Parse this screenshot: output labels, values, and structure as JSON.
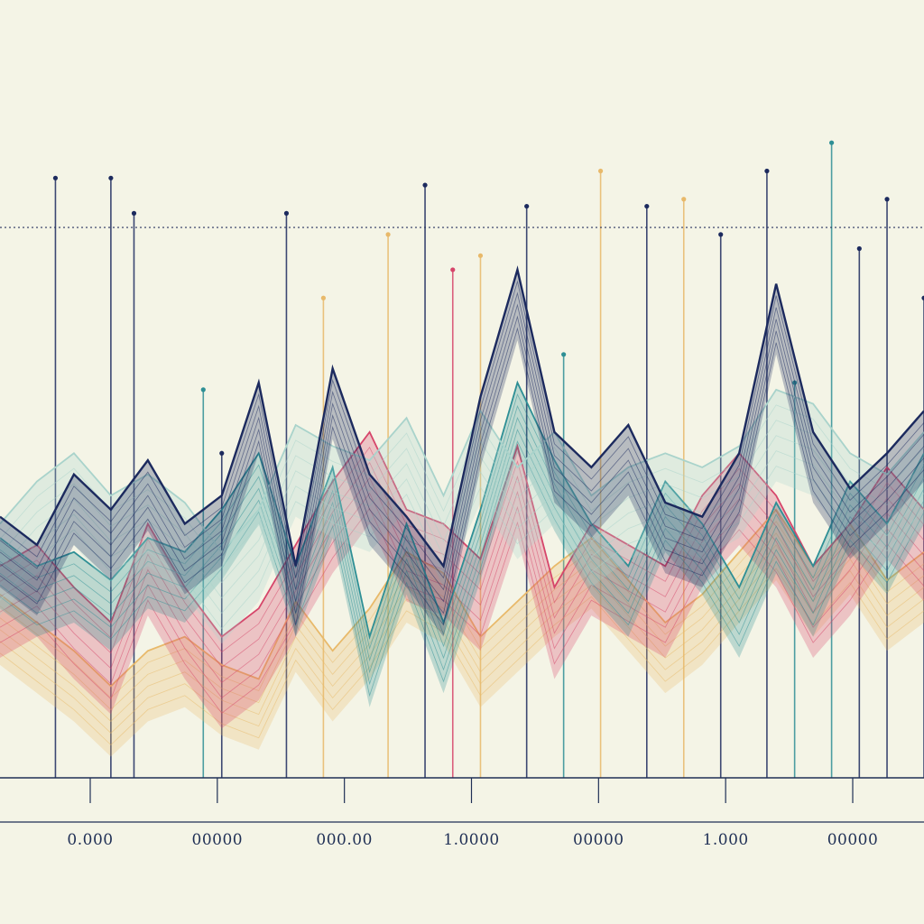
{
  "chart_data": {
    "type": "area",
    "title": "",
    "xlabel": "",
    "ylabel": "",
    "x_tick_labels": [
      "0.000",
      "00000",
      "000.00",
      "1.0000",
      "00000",
      "1.000",
      "00000"
    ],
    "grid": false,
    "reference_line": {
      "style": "dotted",
      "y": 0.78
    },
    "ylim": [
      0,
      1
    ],
    "x": [
      0,
      0.4,
      0.8,
      1.2,
      1.6,
      2.0,
      2.4,
      2.8,
      3.2,
      3.6,
      4.0,
      4.4,
      4.8,
      5.2,
      5.6,
      6.0,
      6.4,
      6.8,
      7.2,
      7.6,
      8.0,
      8.4,
      8.8,
      9.2,
      9.6,
      10.0
    ],
    "series": [
      {
        "color": "#e8b96a",
        "values": [
          0.26,
          0.22,
          0.18,
          0.13,
          0.18,
          0.2,
          0.16,
          0.14,
          0.25,
          0.18,
          0.24,
          0.32,
          0.29,
          0.2,
          0.25,
          0.3,
          0.34,
          0.28,
          0.22,
          0.26,
          0.32,
          0.38,
          0.3,
          0.36,
          0.28,
          0.32
        ]
      },
      {
        "color": "#d6456a",
        "values": [
          0.3,
          0.33,
          0.27,
          0.22,
          0.36,
          0.27,
          0.2,
          0.24,
          0.33,
          0.42,
          0.49,
          0.38,
          0.36,
          0.31,
          0.47,
          0.27,
          0.36,
          0.33,
          0.3,
          0.4,
          0.46,
          0.4,
          0.3,
          0.36,
          0.44,
          0.38
        ]
      },
      {
        "color": "#2e8f95",
        "values": [
          0.34,
          0.3,
          0.32,
          0.28,
          0.34,
          0.32,
          0.38,
          0.46,
          0.3,
          0.44,
          0.2,
          0.36,
          0.22,
          0.38,
          0.56,
          0.45,
          0.36,
          0.3,
          0.42,
          0.36,
          0.27,
          0.39,
          0.3,
          0.42,
          0.36,
          0.46
        ]
      },
      {
        "color": "#a9d3cb",
        "values": [
          0.36,
          0.42,
          0.46,
          0.4,
          0.43,
          0.39,
          0.32,
          0.38,
          0.5,
          0.47,
          0.45,
          0.51,
          0.4,
          0.52,
          0.44,
          0.49,
          0.4,
          0.44,
          0.46,
          0.44,
          0.47,
          0.55,
          0.53,
          0.46,
          0.43,
          0.49
        ]
      },
      {
        "color": "#1c2a5e",
        "values": [
          0.37,
          0.33,
          0.43,
          0.38,
          0.45,
          0.36,
          0.4,
          0.56,
          0.3,
          0.58,
          0.43,
          0.37,
          0.3,
          0.54,
          0.72,
          0.49,
          0.44,
          0.5,
          0.39,
          0.37,
          0.46,
          0.7,
          0.49,
          0.41,
          0.46,
          0.52
        ]
      }
    ],
    "spikes": [
      {
        "x": 0.6,
        "height": 0.85,
        "color": "#1c2a5e"
      },
      {
        "x": 1.2,
        "height": 0.85,
        "color": "#1c2a5e"
      },
      {
        "x": 1.45,
        "height": 0.8,
        "color": "#1c2a5e"
      },
      {
        "x": 2.2,
        "height": 0.55,
        "color": "#2e8f95"
      },
      {
        "x": 2.4,
        "height": 0.46,
        "color": "#1c2a5e"
      },
      {
        "x": 3.5,
        "height": 0.68,
        "color": "#e8b96a"
      },
      {
        "x": 3.1,
        "height": 0.8,
        "color": "#1c2a5e"
      },
      {
        "x": 4.2,
        "height": 0.77,
        "color": "#e8b96a"
      },
      {
        "x": 4.6,
        "height": 0.84,
        "color": "#1c2a5e"
      },
      {
        "x": 4.9,
        "height": 0.72,
        "color": "#d6456a"
      },
      {
        "x": 5.2,
        "height": 0.74,
        "color": "#e8b96a"
      },
      {
        "x": 5.7,
        "height": 0.81,
        "color": "#1c2a5e"
      },
      {
        "x": 6.1,
        "height": 0.6,
        "color": "#2e8f95"
      },
      {
        "x": 6.5,
        "height": 0.86,
        "color": "#e8b96a"
      },
      {
        "x": 7.0,
        "height": 0.81,
        "color": "#1c2a5e"
      },
      {
        "x": 7.4,
        "height": 0.82,
        "color": "#e8b96a"
      },
      {
        "x": 7.8,
        "height": 0.77,
        "color": "#1c2a5e"
      },
      {
        "x": 8.3,
        "height": 0.86,
        "color": "#1c2a5e"
      },
      {
        "x": 8.6,
        "height": 0.56,
        "color": "#2e8f95"
      },
      {
        "x": 9.0,
        "height": 0.9,
        "color": "#2e8f95"
      },
      {
        "x": 9.3,
        "height": 0.75,
        "color": "#1c2a5e"
      },
      {
        "x": 9.6,
        "height": 0.82,
        "color": "#1c2a5e"
      },
      {
        "x": 10.0,
        "height": 0.68,
        "color": "#1c2a5e"
      }
    ]
  }
}
